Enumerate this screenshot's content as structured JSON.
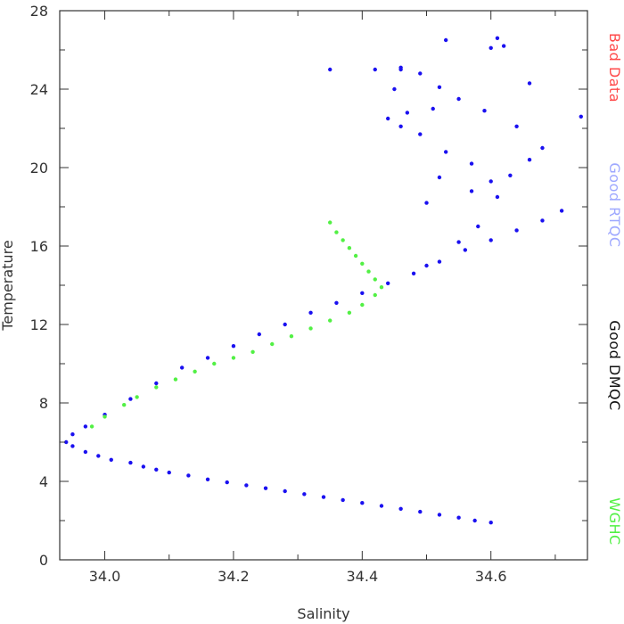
{
  "chart_data": {
    "type": "scatter",
    "title": "",
    "xlabel": "Salinity",
    "ylabel": "Temperature",
    "xlim": [
      33.93,
      34.75
    ],
    "ylim": [
      0,
      28
    ],
    "x_ticks": [
      34.0,
      34.2,
      34.4,
      34.6
    ],
    "x_tick_labels": [
      "34.0",
      "34.2",
      "34.4",
      "34.6"
    ],
    "y_ticks": [
      0,
      4,
      8,
      12,
      16,
      20,
      24,
      28
    ],
    "y_tick_labels": [
      "0",
      "4",
      "8",
      "12",
      "16",
      "20",
      "24",
      "28"
    ],
    "grid": false,
    "legend_placement": "right",
    "legend": [
      {
        "label": "Bad  Data",
        "color": "#ff4a4a"
      },
      {
        "label": "Good  RTQC",
        "color": "#9ea8ff"
      },
      {
        "label": "Good  DMQC",
        "color": "#111111"
      },
      {
        "label": "WGHC",
        "color": "#52f044"
      }
    ],
    "series": [
      {
        "color": "#1a10f0",
        "values": [
          [
            34.6,
            1.9
          ],
          [
            34.575,
            2.0
          ],
          [
            34.55,
            2.15
          ],
          [
            34.52,
            2.3
          ],
          [
            34.49,
            2.45
          ],
          [
            34.46,
            2.6
          ],
          [
            34.43,
            2.75
          ],
          [
            34.4,
            2.9
          ],
          [
            34.37,
            3.05
          ],
          [
            34.34,
            3.2
          ],
          [
            34.31,
            3.35
          ],
          [
            34.28,
            3.5
          ],
          [
            34.25,
            3.65
          ],
          [
            34.22,
            3.8
          ],
          [
            34.19,
            3.95
          ],
          [
            34.16,
            4.1
          ],
          [
            34.13,
            4.3
          ],
          [
            34.1,
            4.45
          ],
          [
            34.08,
            4.6
          ],
          [
            34.06,
            4.75
          ],
          [
            34.04,
            4.95
          ],
          [
            34.01,
            5.1
          ],
          [
            33.99,
            5.3
          ],
          [
            33.97,
            5.5
          ],
          [
            33.95,
            5.8
          ],
          [
            33.94,
            6.0
          ],
          [
            33.95,
            6.4
          ],
          [
            33.97,
            6.8
          ],
          [
            34.0,
            7.4
          ],
          [
            34.04,
            8.2
          ],
          [
            34.08,
            9.0
          ],
          [
            34.12,
            9.8
          ],
          [
            34.16,
            10.3
          ],
          [
            34.2,
            10.9
          ],
          [
            34.24,
            11.5
          ],
          [
            34.28,
            12.0
          ],
          [
            34.32,
            12.6
          ],
          [
            34.36,
            13.1
          ],
          [
            34.4,
            13.6
          ],
          [
            34.44,
            14.1
          ],
          [
            34.48,
            14.6
          ],
          [
            34.52,
            15.2
          ],
          [
            34.56,
            15.8
          ],
          [
            34.6,
            16.3
          ],
          [
            34.64,
            16.8
          ],
          [
            34.68,
            17.3
          ],
          [
            34.71,
            17.8
          ],
          [
            34.5,
            15.0
          ],
          [
            34.55,
            16.2
          ],
          [
            34.58,
            17.0
          ],
          [
            34.61,
            18.5
          ],
          [
            34.63,
            19.6
          ],
          [
            34.66,
            20.4
          ],
          [
            34.68,
            21.0
          ],
          [
            34.64,
            22.1
          ],
          [
            34.59,
            22.9
          ],
          [
            34.55,
            23.5
          ],
          [
            34.52,
            24.1
          ],
          [
            34.49,
            24.8
          ],
          [
            34.46,
            25.1
          ],
          [
            34.45,
            24.0
          ],
          [
            34.47,
            22.8
          ],
          [
            34.49,
            21.7
          ],
          [
            34.53,
            20.8
          ],
          [
            34.57,
            20.2
          ],
          [
            34.6,
            19.3
          ],
          [
            34.52,
            19.5
          ],
          [
            34.57,
            18.8
          ],
          [
            34.5,
            18.2
          ],
          [
            34.44,
            22.5
          ],
          [
            34.46,
            22.1
          ],
          [
            34.51,
            23.0
          ],
          [
            34.53,
            26.5
          ],
          [
            34.61,
            26.6
          ],
          [
            34.62,
            26.2
          ],
          [
            34.6,
            26.1
          ],
          [
            34.35,
            25.0
          ],
          [
            34.42,
            25.0
          ],
          [
            34.46,
            25.0
          ],
          [
            34.74,
            22.6
          ],
          [
            34.66,
            24.3
          ]
        ]
      },
      {
        "color": "#52f044",
        "values": [
          [
            33.98,
            6.8
          ],
          [
            34.0,
            7.3
          ],
          [
            34.03,
            7.9
          ],
          [
            34.05,
            8.3
          ],
          [
            34.08,
            8.8
          ],
          [
            34.11,
            9.2
          ],
          [
            34.14,
            9.6
          ],
          [
            34.17,
            10.0
          ],
          [
            34.2,
            10.3
          ],
          [
            34.23,
            10.6
          ],
          [
            34.26,
            11.0
          ],
          [
            34.29,
            11.4
          ],
          [
            34.32,
            11.8
          ],
          [
            34.35,
            12.2
          ],
          [
            34.38,
            12.6
          ],
          [
            34.4,
            13.0
          ],
          [
            34.42,
            13.5
          ],
          [
            34.43,
            13.9
          ],
          [
            34.42,
            14.3
          ],
          [
            34.41,
            14.7
          ],
          [
            34.4,
            15.1
          ],
          [
            34.39,
            15.5
          ],
          [
            34.38,
            15.9
          ],
          [
            34.37,
            16.3
          ],
          [
            34.36,
            16.7
          ],
          [
            34.35,
            17.2
          ]
        ]
      }
    ]
  }
}
